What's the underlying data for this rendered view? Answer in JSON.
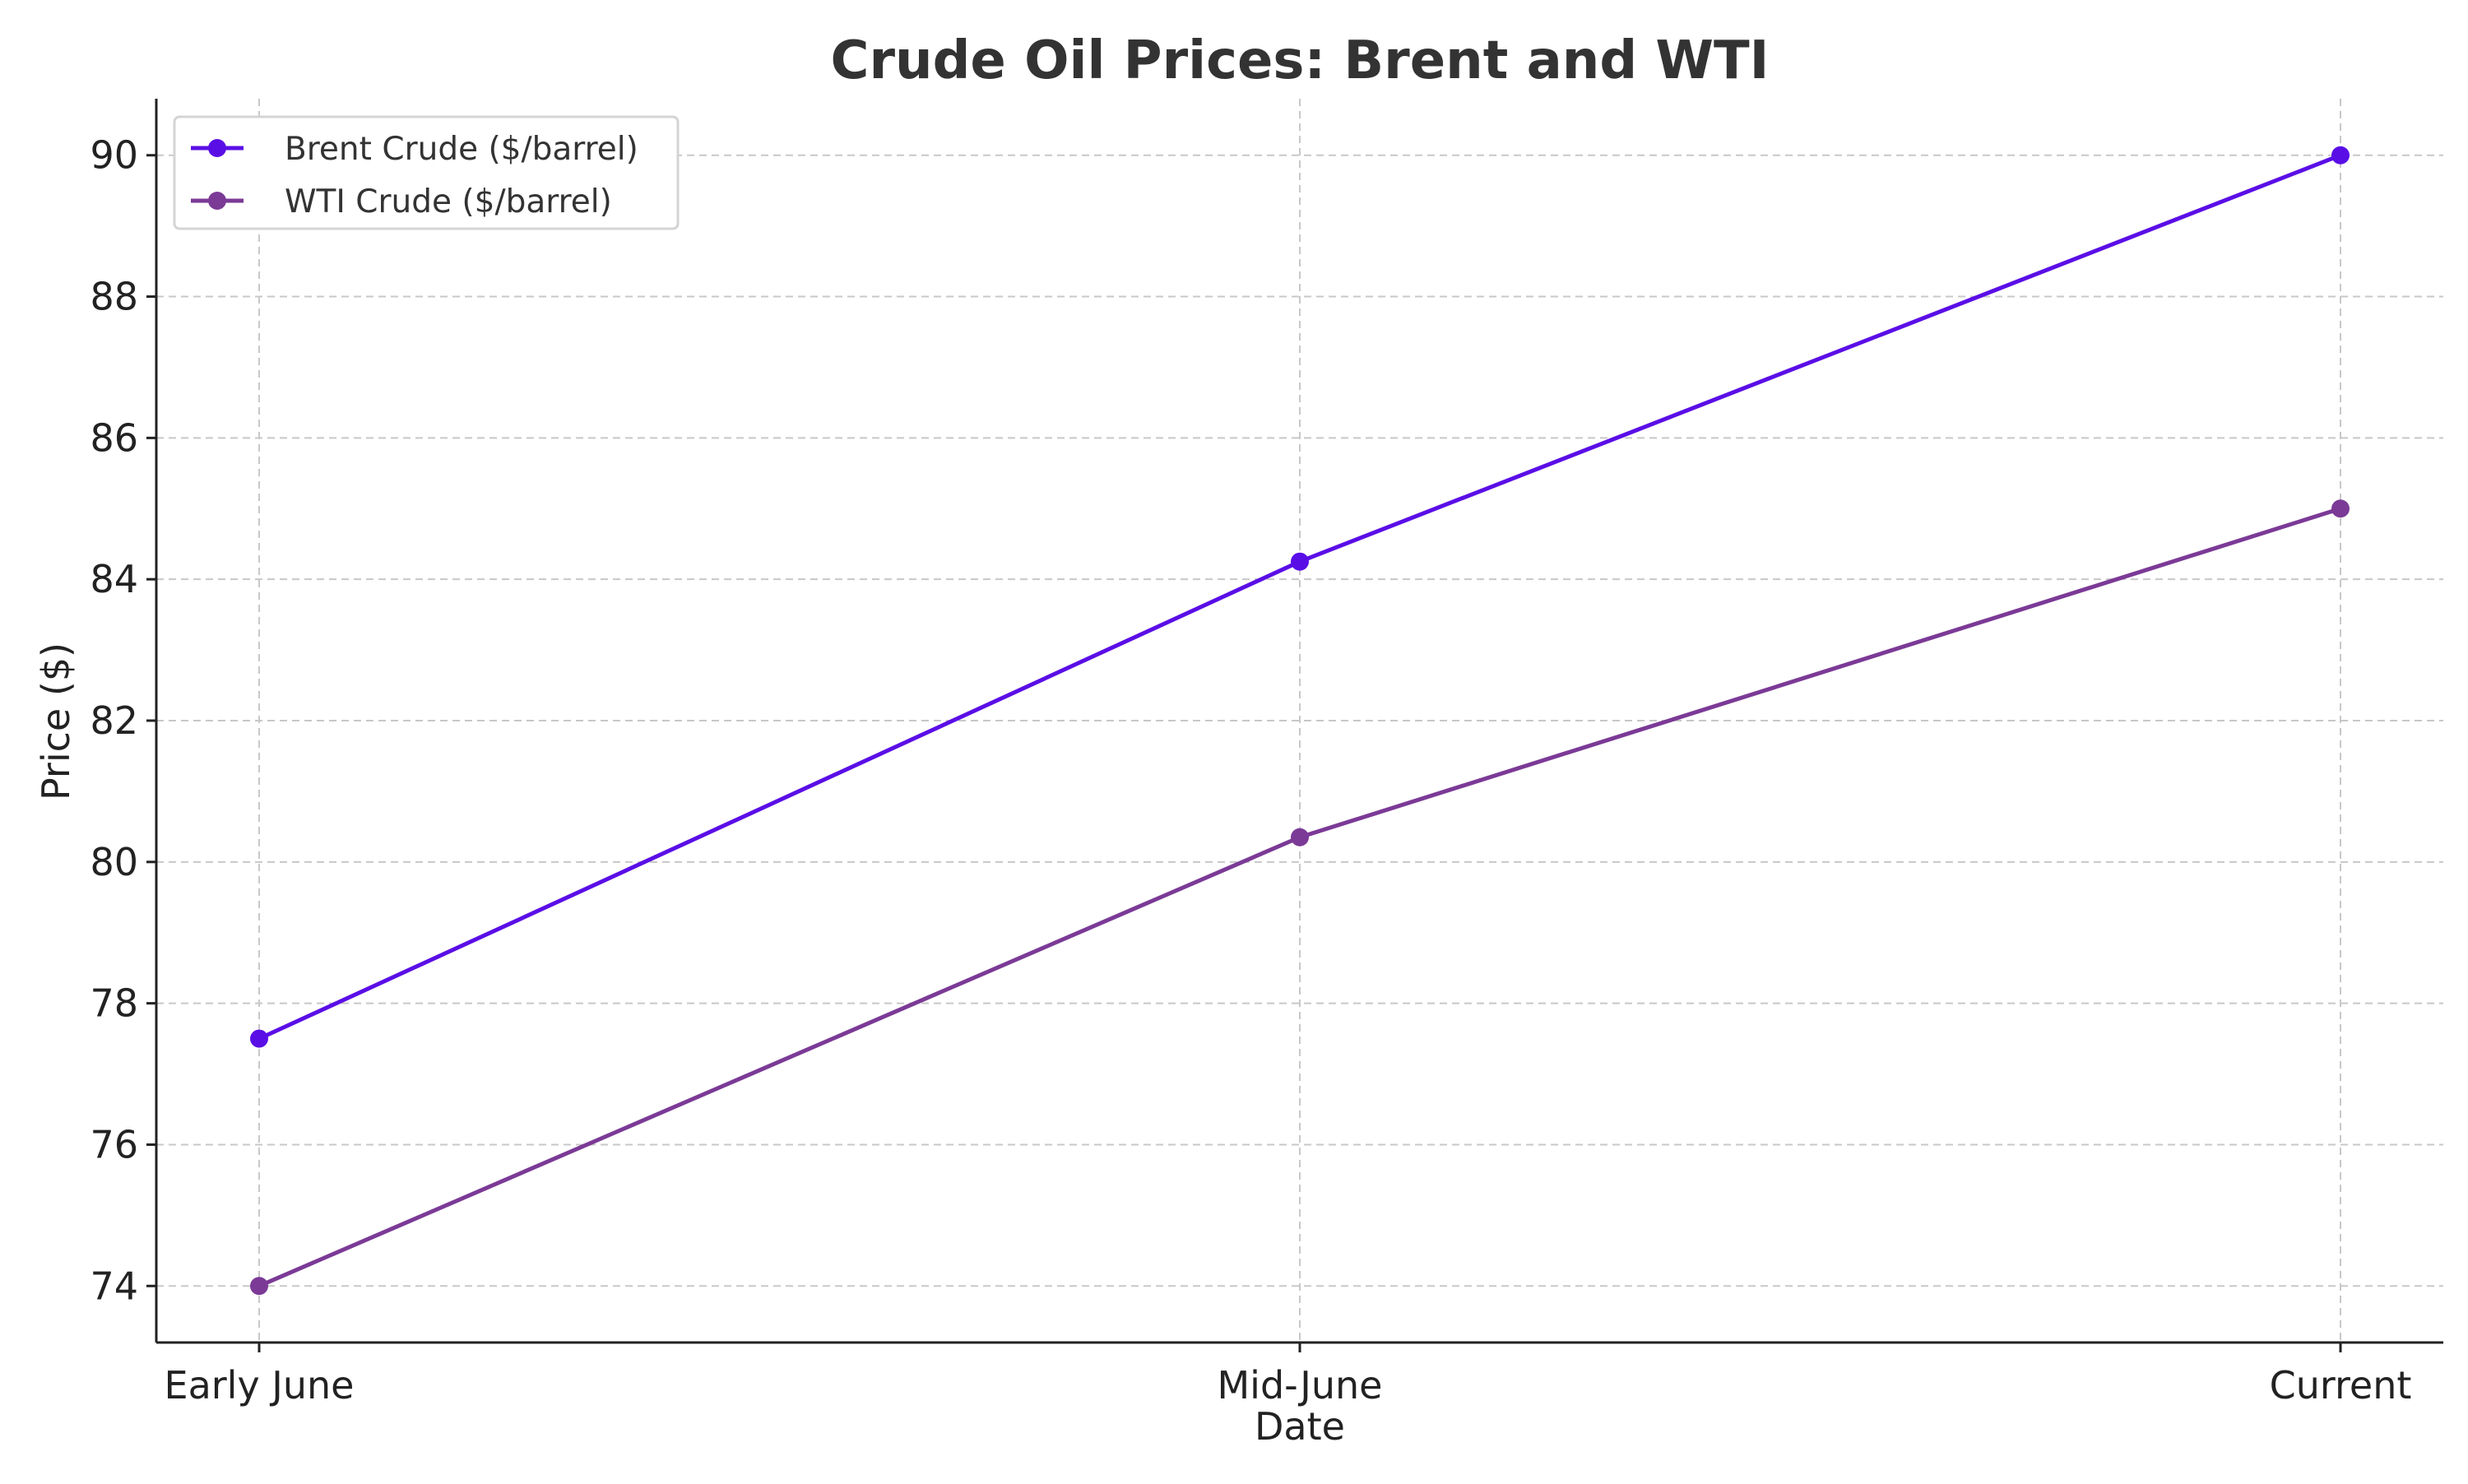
{
  "chart_data": {
    "type": "line",
    "title": "Crude Oil Prices: Brent and WTI",
    "xlabel": "Date",
    "ylabel": "Price ($)",
    "categories": [
      "Early June",
      "Mid-June",
      "Current"
    ],
    "ylim": [
      73.2,
      90.8
    ],
    "yticks": [
      74,
      76,
      78,
      80,
      82,
      84,
      86,
      88,
      90
    ],
    "grid": true,
    "legend_position": "top-left",
    "series": [
      {
        "name": "Brent Crude ($/barrel)",
        "color": "#5a0ee6",
        "values": [
          77.5,
          84.25,
          90.0
        ]
      },
      {
        "name": "WTI Crude ($/barrel)",
        "color": "#7b3a96",
        "values": [
          74.0,
          80.35,
          85.0
        ]
      }
    ]
  }
}
